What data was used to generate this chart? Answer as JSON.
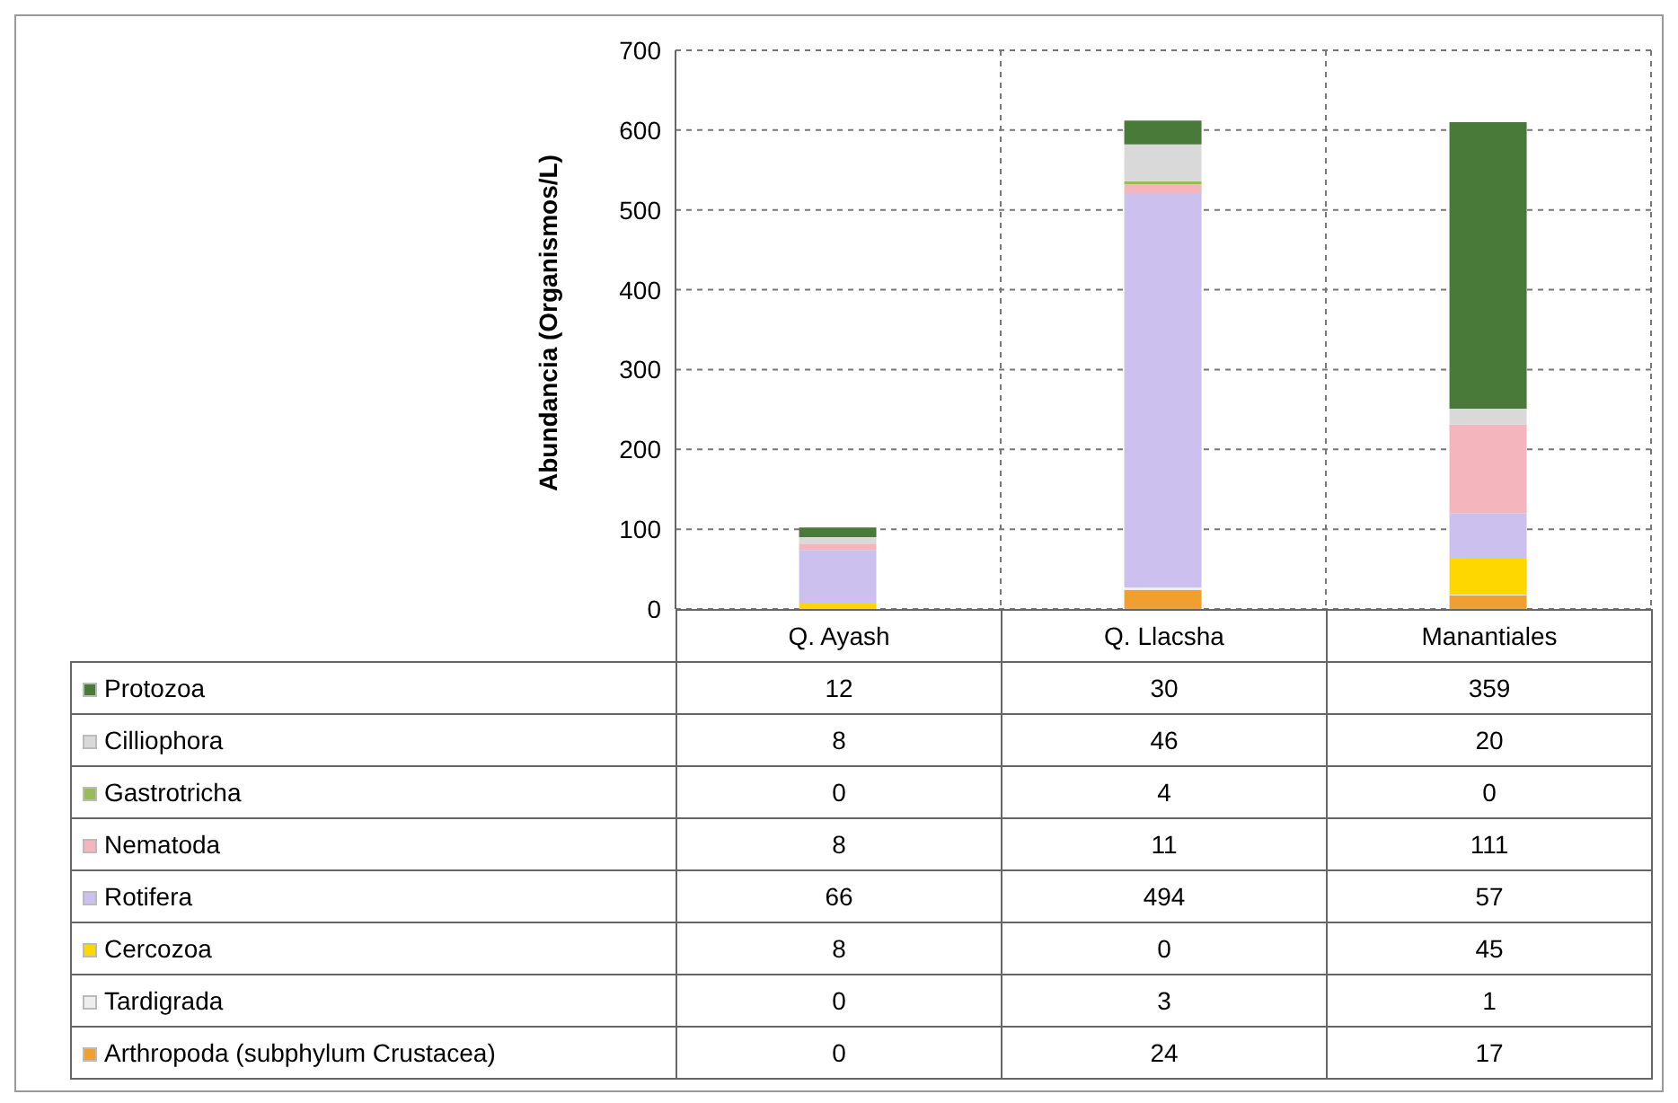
{
  "chart_data": {
    "type": "bar",
    "stacked": true,
    "ylabel": "Abundancia  (Organismos/L)",
    "categories": [
      "Q. Ayash",
      "Q. Llacsha",
      "Manantiales"
    ],
    "series": [
      {
        "name": "Arthropoda (subphylum Crustacea)",
        "color": "#f0a030",
        "values": [
          0,
          24,
          17
        ]
      },
      {
        "name": "Tardigrada",
        "color": "#eeeeee",
        "values": [
          0,
          3,
          1
        ]
      },
      {
        "name": "Cercozoa",
        "color": "#ffd700",
        "values": [
          8,
          0,
          45
        ]
      },
      {
        "name": "Rotifera",
        "color": "#ccc0ee",
        "values": [
          66,
          494,
          57
        ]
      },
      {
        "name": "Nematoda",
        "color": "#f4b6bc",
        "values": [
          8,
          11,
          111
        ]
      },
      {
        "name": "Gastrotricha",
        "color": "#9bbb59",
        "values": [
          0,
          4,
          0
        ]
      },
      {
        "name": "Cilliophora",
        "color": "#d9d9d9",
        "values": [
          8,
          46,
          20
        ]
      },
      {
        "name": "Protozoa",
        "color": "#4a7a3a",
        "values": [
          12,
          30,
          359
        ]
      }
    ],
    "ylim": [
      0,
      700
    ],
    "yticks": [
      0,
      100,
      200,
      300,
      400,
      500,
      600,
      700
    ],
    "grid": true,
    "legend": "bottom",
    "data_labels": true
  }
}
